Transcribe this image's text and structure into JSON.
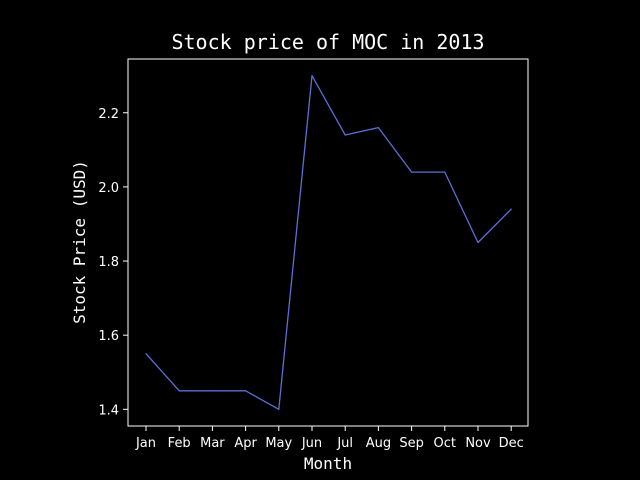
{
  "chart_data": {
    "type": "line",
    "title": "Stock price of MOC in 2013",
    "xlabel": "Month",
    "ylabel": "Stock Price (USD)",
    "categories": [
      "Jan",
      "Feb",
      "Mar",
      "Apr",
      "May",
      "Jun",
      "Jul",
      "Aug",
      "Sep",
      "Oct",
      "Nov",
      "Dec"
    ],
    "series": [
      {
        "values": [
          1.55,
          1.45,
          1.45,
          1.45,
          1.4,
          2.3,
          2.14,
          2.16,
          2.04,
          2.04,
          1.85,
          1.94
        ],
        "color": "#5b6fd6"
      }
    ],
    "yticks": [
      "1.4",
      "1.6",
      "1.8",
      "2.0",
      "2.2"
    ],
    "ylim": [
      1.355,
      2.345
    ],
    "grid": false,
    "background": "#000000",
    "foreground": "#ffffff"
  }
}
